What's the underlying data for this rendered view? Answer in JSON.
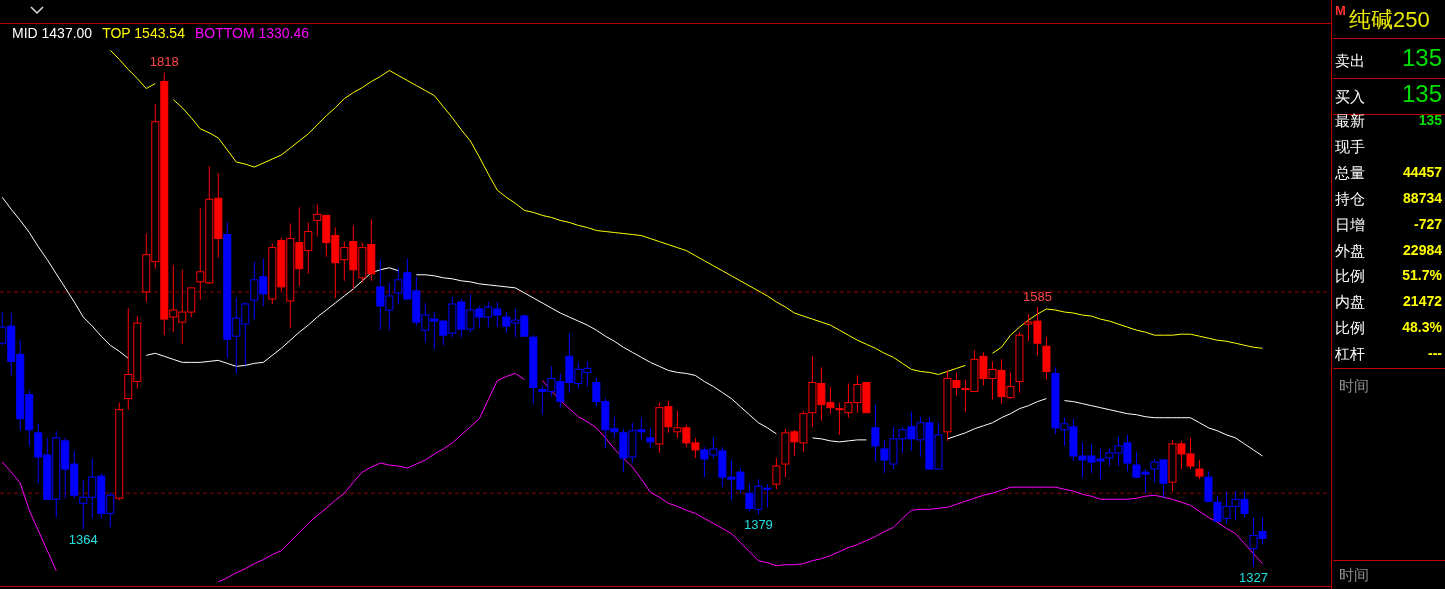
{
  "chart_data": [
    {
      "type": "candlestick",
      "legend": "top left",
      "tick_labels": false,
      "categories": [
        null,
        null,
        null,
        null,
        null,
        null,
        null,
        null,
        null,
        null,
        null,
        null,
        null,
        null,
        null,
        null,
        null,
        null,
        null,
        null,
        null,
        null,
        null,
        null,
        null,
        null,
        null,
        null,
        null,
        null,
        null,
        null,
        null,
        null,
        null,
        null,
        null,
        null,
        null,
        null,
        null,
        null,
        null,
        null,
        null,
        null,
        null,
        null,
        null,
        null,
        null,
        null,
        null,
        null,
        null,
        null,
        null,
        null,
        null,
        null,
        null,
        null,
        null,
        null,
        null,
        null,
        null,
        null,
        null,
        null,
        null,
        null,
        null,
        null,
        null,
        null,
        null,
        null,
        null,
        null,
        null,
        null,
        null,
        null,
        null,
        null,
        null,
        null,
        null,
        null,
        null,
        null,
        null,
        null,
        null,
        null,
        null,
        null,
        null,
        null,
        null,
        null,
        null,
        null,
        null,
        null,
        null,
        null,
        null,
        null,
        null,
        null,
        null,
        null,
        null,
        null,
        null,
        null,
        null,
        null,
        null,
        null,
        null,
        null,
        null,
        null,
        null,
        null,
        null,
        null,
        null,
        null,
        null,
        null,
        null,
        null,
        null,
        null,
        null,
        null,
        null
      ],
      "ohlc": [
        [
          1549,
          1580,
          1547,
          1565
        ],
        [
          1566,
          1579,
          1517,
          1531
        ],
        [
          1538,
          1552,
          1462,
          1474
        ],
        [
          1498,
          1502,
          1447,
          1463
        ],
        [
          1460,
          1469,
          1410,
          1436
        ],
        [
          1438,
          1455,
          1394,
          1394
        ],
        [
          1394,
          1462,
          1376,
          1455
        ],
        [
          1452,
          1455,
          1395,
          1424
        ],
        [
          1429,
          1442,
          1395,
          1398
        ],
        [
          1390,
          1413,
          1364,
          1396
        ],
        [
          1396,
          1434,
          1375,
          1416
        ],
        [
          1417,
          1420,
          1375,
          1380
        ],
        [
          1380,
          1401,
          1366,
          1398
        ],
        [
          1395,
          1490,
          1393,
          1483
        ],
        [
          1494,
          1584,
          1483,
          1518
        ],
        [
          1511,
          1576,
          1504,
          1569
        ],
        [
          1600,
          1658,
          1590,
          1637
        ],
        [
          1630,
          1787,
          1623,
          1769
        ],
        [
          1809,
          1818,
          1557,
          1573
        ],
        [
          1575,
          1627,
          1560,
          1582
        ],
        [
          1570,
          1622,
          1548,
          1580
        ],
        [
          1580,
          1604,
          1575,
          1604
        ],
        [
          1610,
          1683,
          1592,
          1620
        ],
        [
          1609,
          1725,
          1608,
          1692
        ],
        [
          1693,
          1718,
          1634,
          1653
        ],
        [
          1657,
          1669,
          1534,
          1553
        ],
        [
          1556,
          1594,
          1519,
          1574
        ],
        [
          1568,
          1590,
          1527,
          1588
        ],
        [
          1592,
          1630,
          1573,
          1612
        ],
        [
          1615,
          1633,
          1586,
          1598
        ],
        [
          1593,
          1648,
          1588,
          1644
        ],
        [
          1651,
          1654,
          1601,
          1605
        ],
        [
          1591,
          1668,
          1564,
          1653
        ],
        [
          1649,
          1684,
          1606,
          1623
        ],
        [
          1641,
          1669,
          1618,
          1660
        ],
        [
          1671,
          1687,
          1655,
          1677
        ],
        [
          1676,
          1676,
          1635,
          1649
        ],
        [
          1656,
          1664,
          1594,
          1629
        ],
        [
          1632,
          1650,
          1611,
          1644
        ],
        [
          1650,
          1666,
          1603,
          1622
        ],
        [
          1614,
          1649,
          1609,
          1644
        ],
        [
          1647,
          1672,
          1611,
          1618
        ],
        [
          1605,
          1632,
          1562,
          1586
        ],
        [
          1582,
          1609,
          1562,
          1596
        ],
        [
          1599,
          1624,
          1588,
          1612
        ],
        [
          1619,
          1633,
          1592,
          1593
        ],
        [
          1601,
          1615,
          1566,
          1570
        ],
        [
          1562,
          1589,
          1550,
          1577
        ],
        [
          1573,
          1580,
          1543,
          1571
        ],
        [
          1571,
          1572,
          1547,
          1557
        ],
        [
          1559,
          1595,
          1555,
          1588
        ],
        [
          1590,
          1593,
          1555,
          1563
        ],
        [
          1563,
          1598,
          1560,
          1582
        ],
        [
          1583,
          1586,
          1564,
          1575
        ],
        [
          1575,
          1590,
          1565,
          1585
        ],
        [
          1583,
          1590,
          1565,
          1577
        ],
        [
          1575,
          1580,
          1559,
          1566
        ],
        [
          1569,
          1583,
          1555,
          1572
        ],
        [
          1576,
          1578,
          1556,
          1556
        ],
        [
          1555,
          1557,
          1489,
          1505
        ],
        [
          1503,
          1507,
          1478,
          1501
        ],
        [
          1501,
          1526,
          1496,
          1514
        ],
        [
          1511,
          1519,
          1485,
          1491
        ],
        [
          1536,
          1559,
          1500,
          1510
        ],
        [
          1509,
          1530,
          1504,
          1523
        ],
        [
          1520,
          1531,
          1506,
          1524
        ],
        [
          1510,
          1515,
          1486,
          1491
        ],
        [
          1491,
          1494,
          1445,
          1463
        ],
        [
          1464,
          1476,
          1455,
          1461
        ],
        [
          1460,
          1464,
          1421,
          1435
        ],
        [
          1436,
          1470,
          1430,
          1462
        ],
        [
          1463,
          1475,
          1453,
          1461
        ],
        [
          1455,
          1465,
          1445,
          1451
        ],
        [
          1449,
          1490,
          1440,
          1485
        ],
        [
          1486,
          1492,
          1460,
          1466
        ],
        [
          1461,
          1482,
          1455,
          1465
        ],
        [
          1465,
          1468,
          1446,
          1450
        ],
        [
          1450,
          1455,
          1435,
          1443
        ],
        [
          1443,
          1446,
          1416,
          1434
        ],
        [
          1438,
          1456,
          1434,
          1444
        ],
        [
          1442,
          1446,
          1406,
          1416
        ],
        [
          1416,
          1433,
          1393,
          1414
        ],
        [
          1421,
          1425,
          1400,
          1404
        ],
        [
          1400,
          1410,
          1382,
          1385
        ],
        [
          1384,
          1414,
          1379,
          1407
        ],
        [
          1405,
          1409,
          1386,
          1404
        ],
        [
          1409,
          1435,
          1404,
          1427
        ],
        [
          1429,
          1464,
          1416,
          1460
        ],
        [
          1461,
          1463,
          1437,
          1451
        ],
        [
          1450,
          1482,
          1441,
          1479
        ],
        [
          1480,
          1536,
          1466,
          1510
        ],
        [
          1509,
          1525,
          1472,
          1488
        ],
        [
          1490,
          1506,
          1479,
          1485
        ],
        [
          1484,
          1490,
          1458,
          1483
        ],
        [
          1480,
          1509,
          1475,
          1490
        ],
        [
          1490,
          1517,
          1480,
          1508
        ],
        [
          1510,
          1510,
          1480,
          1480
        ],
        [
          1465,
          1488,
          1431,
          1447
        ],
        [
          1444,
          1453,
          1420,
          1433
        ],
        [
          1429,
          1466,
          1424,
          1454
        ],
        [
          1454,
          1466,
          1440,
          1463
        ],
        [
          1466,
          1481,
          1442,
          1454
        ],
        [
          1453,
          1476,
          1436,
          1470
        ],
        [
          1470,
          1476,
          1424,
          1424
        ],
        [
          1424,
          1470,
          1424,
          1458
        ],
        [
          1461,
          1522,
          1452,
          1514
        ],
        [
          1512,
          1520,
          1497,
          1505
        ],
        [
          1504,
          1513,
          1481,
          1503
        ],
        [
          1501,
          1542,
          1501,
          1533
        ],
        [
          1536,
          1540,
          1507,
          1514
        ],
        [
          1514,
          1531,
          1493,
          1523
        ],
        [
          1522,
          1533,
          1489,
          1496
        ],
        [
          1495,
          1520,
          1494,
          1506
        ],
        [
          1511,
          1560,
          1500,
          1557
        ],
        [
          1568,
          1578,
          1551,
          1570
        ],
        [
          1571,
          1585,
          1537,
          1549
        ],
        [
          1546,
          1555,
          1513,
          1521
        ],
        [
          1519,
          1525,
          1459,
          1465
        ],
        [
          1463,
          1475,
          1447,
          1469
        ],
        [
          1466,
          1474,
          1432,
          1437
        ],
        [
          1437,
          1451,
          1415,
          1433
        ],
        [
          1437,
          1449,
          1420,
          1431
        ],
        [
          1434,
          1444,
          1414,
          1432
        ],
        [
          1435,
          1444,
          1427,
          1440
        ],
        [
          1440,
          1456,
          1427,
          1447
        ],
        [
          1450,
          1458,
          1422,
          1430
        ],
        [
          1428,
          1441,
          1415,
          1416
        ],
        [
          1421,
          1424,
          1400,
          1419
        ],
        [
          1424,
          1434,
          1411,
          1431
        ],
        [
          1433,
          1434,
          1395,
          1410
        ],
        [
          1411,
          1453,
          1402,
          1449
        ],
        [
          1449,
          1452,
          1424,
          1439
        ],
        [
          1439,
          1455,
          1424,
          1427
        ],
        [
          1424,
          1433,
          1414,
          1417
        ],
        [
          1416,
          1422,
          1392,
          1392
        ],
        [
          1391,
          1397,
          1372,
          1372
        ],
        [
          1375,
          1402,
          1370,
          1387
        ],
        [
          1387,
          1402,
          1373,
          1394
        ],
        [
          1394,
          1402,
          1376,
          1380
        ],
        [
          1345,
          1376,
          1327,
          1358
        ],
        [
          1362,
          1376,
          1349,
          1355
        ]
      ],
      "colors": [
        "#0000ff",
        "#0000ff",
        "#0000ff",
        "#0000ff",
        "#0000ff",
        "#0000ff",
        "#0000ff",
        "#0000ff",
        "#0000ff",
        "#0000ff",
        "#0000ff",
        "#0000ff",
        "#0000ff",
        "#ff0000",
        "#ff0000",
        "#ff0000",
        "#ff0000",
        "#ff0000",
        "#ff0000",
        "#ff0000",
        "#ff0000",
        "#ff0000",
        "#ff0000",
        "#ff0000",
        "#ff0000",
        "#0000ff",
        "#0000ff",
        "#0000ff",
        "#0000ff",
        "#0000ff",
        "#ff0000",
        "#ff0000",
        "#ff0000",
        "#ff0000",
        "#ff0000",
        "#ff0000",
        "#ff0000",
        "#ff0000",
        "#ff0000",
        "#ff0000",
        "#ff0000",
        "#ff0000",
        "#0000ff",
        "#0000ff",
        "#0000ff",
        "#0000ff",
        "#0000ff",
        "#0000ff",
        "#0000ff",
        "#0000ff",
        "#0000ff",
        "#0000ff",
        "#0000ff",
        "#0000ff",
        "#0000ff",
        "#0000ff",
        "#0000ff",
        "#0000ff",
        "#0000ff",
        "#0000ff",
        "#0000ff",
        "#0000ff",
        "#0000ff",
        "#0000ff",
        "#0000ff",
        "#0000ff",
        "#0000ff",
        "#0000ff",
        "#0000ff",
        "#0000ff",
        "#0000ff",
        "#0000ff",
        "#0000ff",
        "#ff0000",
        "#ff0000",
        "#ff0000",
        "#ff0000",
        "#ff0000",
        "#0000ff",
        "#0000ff",
        "#0000ff",
        "#0000ff",
        "#0000ff",
        "#0000ff",
        "#0000ff",
        "#0000ff",
        "#ff0000",
        "#ff0000",
        "#ff0000",
        "#ff0000",
        "#ff0000",
        "#ff0000",
        "#ff0000",
        "#ff0000",
        "#ff0000",
        "#ff0000",
        "#ff0000",
        "#0000ff",
        "#0000ff",
        "#0000ff",
        "#0000ff",
        "#0000ff",
        "#0000ff",
        "#0000ff",
        "#0000ff",
        "#ff0000",
        "#ff0000",
        "#ff0000",
        "#ff0000",
        "#ff0000",
        "#ff0000",
        "#ff0000",
        "#ff0000",
        "#ff0000",
        "#ff0000",
        "#ff0000",
        "#ff0000",
        "#0000ff",
        "#0000ff",
        "#0000ff",
        "#0000ff",
        "#0000ff",
        "#0000ff",
        "#0000ff",
        "#0000ff",
        "#0000ff",
        "#0000ff",
        "#0000ff",
        "#0000ff",
        "#0000ff",
        "#ff0000",
        "#ff0000",
        "#ff0000",
        "#ff0000",
        "#0000ff",
        "#0000ff",
        "#0000ff",
        "#0000ff",
        "#0000ff",
        "#0000ff",
        "#0000ff"
      ],
      "series": [
        {
          "type": "line",
          "name": "MID 1437.00",
          "color": "#ffffff",
          "values": [
            1694,
            1682,
            1671,
            1659,
            1645,
            1632,
            1618,
            1604,
            1590,
            1575,
            1566,
            1556,
            1547,
            1541,
            1534,
            null,
            1537,
            1539,
            1536,
            1533,
            1530,
            1530,
            1530,
            1531,
            1532,
            1529,
            1526,
            1527,
            1529,
            1530,
            1537,
            1544,
            1552,
            1560,
            1567,
            1575,
            1582,
            1589,
            1596,
            1603,
            1611,
            1619,
            1622,
            1624,
            1621,
            null,
            1617,
            1617,
            1616,
            1614,
            1613,
            1611,
            1610,
            1608,
            1607,
            1606,
            1605,
            1604,
            1599,
            1594,
            1589,
            1584,
            1579,
            1575,
            1571,
            1567,
            1562,
            1556,
            1551,
            1545,
            1540,
            1535,
            1530,
            1526,
            1522,
            1520,
            1519,
            1517,
            1511,
            1506,
            1500,
            1494,
            1486,
            1478,
            1470,
            1465,
            1459,
            null,
            null,
            null,
            1455,
            1454,
            1452,
            1451,
            1452,
            1453,
            1453,
            null,
            null,
            null,
            null,
            null,
            null,
            null,
            null,
            1454,
            1457,
            1460,
            1464,
            1467,
            1470,
            1475,
            1479,
            1484,
            1487,
            1491,
            1494,
            null,
            1492,
            1491,
            1489,
            1487,
            1485,
            1483,
            1481,
            1479,
            1478,
            1476,
            1475,
            1475,
            1475,
            1475,
            1475,
            1470,
            1465,
            1462,
            1458,
            1455,
            1449,
            1443,
            1437
          ]
        },
        {
          "type": "line",
          "name": "TOP 1543.54",
          "color": "#ffff00",
          "values": [
            null,
            null,
            null,
            null,
            null,
            null,
            null,
            null,
            null,
            null,
            null,
            null,
            1840,
            1831,
            1821,
            1812,
            1802,
            1807,
            null,
            1791,
            1783,
            1773,
            1762,
            1758,
            1753,
            1741,
            1729,
            1727,
            1724,
            1728,
            1732,
            1736,
            1743,
            1750,
            1757,
            1766,
            1775,
            1783,
            1792,
            1798,
            1803,
            1809,
            1814,
            1820,
            1815,
            1810,
            1805,
            1800,
            1795,
            1784,
            1773,
            1761,
            1750,
            1734,
            1717,
            1701,
            1694,
            1688,
            1681,
            1679,
            1676,
            1674,
            1671,
            1669,
            1666,
            1664,
            1661,
            1660,
            1659,
            1658,
            1657,
            1656,
            1653,
            1650,
            1647,
            1644,
            1641,
            1636,
            1631,
            1626,
            1621,
            1616,
            1611,
            1606,
            1601,
            1596,
            1590,
            1585,
            1579,
            1576,
            1573,
            1570,
            1567,
            1562,
            1557,
            1552,
            1548,
            1544,
            1539,
            1535,
            1529,
            1523,
            1521,
            1520,
            1518,
            1521,
            1524,
            1527,
            null,
            null,
            1539,
            1545,
            1557,
            1565,
            1572,
            1578,
            1583,
            1582,
            1580,
            1579,
            1577,
            1576,
            1573,
            1571,
            1568,
            1565,
            1562,
            1560,
            1557,
            1557,
            1557,
            1558,
            1558,
            1556,
            1554,
            1552,
            1551,
            1549,
            1547,
            1545,
            1544
          ]
        },
        {
          "type": "line",
          "name": "BOTTOM 1330.46",
          "color": "#ff00ff",
          "values": [
            1431,
            1421,
            1410,
            1383,
            1363,
            1343,
            1323,
            null,
            null,
            null,
            null,
            null,
            null,
            null,
            null,
            null,
            null,
            null,
            null,
            null,
            null,
            null,
            null,
            null,
            1312,
            1316,
            1321,
            1325,
            1330,
            1334,
            1339,
            1343,
            1352,
            1361,
            1370,
            1378,
            1385,
            1393,
            1400,
            1411,
            1421,
            1426,
            1430,
            1428,
            1427,
            1425,
            1429,
            1433,
            1439,
            1444,
            1450,
            1458,
            1466,
            1474,
            1493,
            1512,
            1516,
            1519,
            1513,
            null,
            1512,
            1502,
            1492,
            1484,
            1476,
            1471,
            1465,
            1455,
            1444,
            1435,
            1426,
            1414,
            1401,
            1396,
            1390,
            1387,
            1383,
            1380,
            1375,
            1370,
            1365,
            1360,
            1351,
            1342,
            1333,
            1331,
            1328,
            1329,
            1329,
            1330,
            1333,
            1335,
            1338,
            1342,
            1346,
            1349,
            1353,
            1357,
            1362,
            1366,
            1375,
            1383,
            1384,
            1384,
            1385,
            1386,
            1389,
            1392,
            1395,
            1398,
            1400,
            1403,
            1406,
            1406,
            1406,
            1406,
            1406,
            1406,
            1404,
            1402,
            1399,
            1397,
            1394,
            1394,
            1394,
            1394,
            1395,
            1397,
            1398,
            1396,
            1394,
            1391,
            1388,
            1382,
            1376,
            1371,
            1365,
            1360,
            1350,
            1340,
            1330
          ]
        }
      ],
      "ref_lines": [
        {
          "axis": "y",
          "value": 1600,
          "color": "#8b0000",
          "line_style": "dashed"
        },
        {
          "axis": "y",
          "value": 1400,
          "color": "#8b0000",
          "line_style": "dashed"
        }
      ],
      "annotations": [
        {
          "text": "1818",
          "y": 1818
        },
        {
          "text": "1364",
          "y": 1364
        },
        {
          "text": "1379",
          "y": 1379
        },
        {
          "text": "1585",
          "y": 1585
        },
        {
          "text": "1327",
          "y": 1327
        }
      ]
    },
    {
      "type": "other",
      "title": "纯碱250",
      "categories": [
        "卖出",
        "买入",
        "最新",
        "现手",
        "总量",
        "持仓",
        "日增",
        "外盘",
        "比例",
        "内盘",
        "比例",
        "杠杆"
      ],
      "value_labels": [
        "135",
        "135",
        "135",
        null,
        "44457",
        "88734",
        "-727",
        "22984",
        "51.7%",
        "21472",
        "48.3%",
        "---"
      ],
      "annotations": [
        "M",
        "时间",
        "时间"
      ]
    }
  ]
}
